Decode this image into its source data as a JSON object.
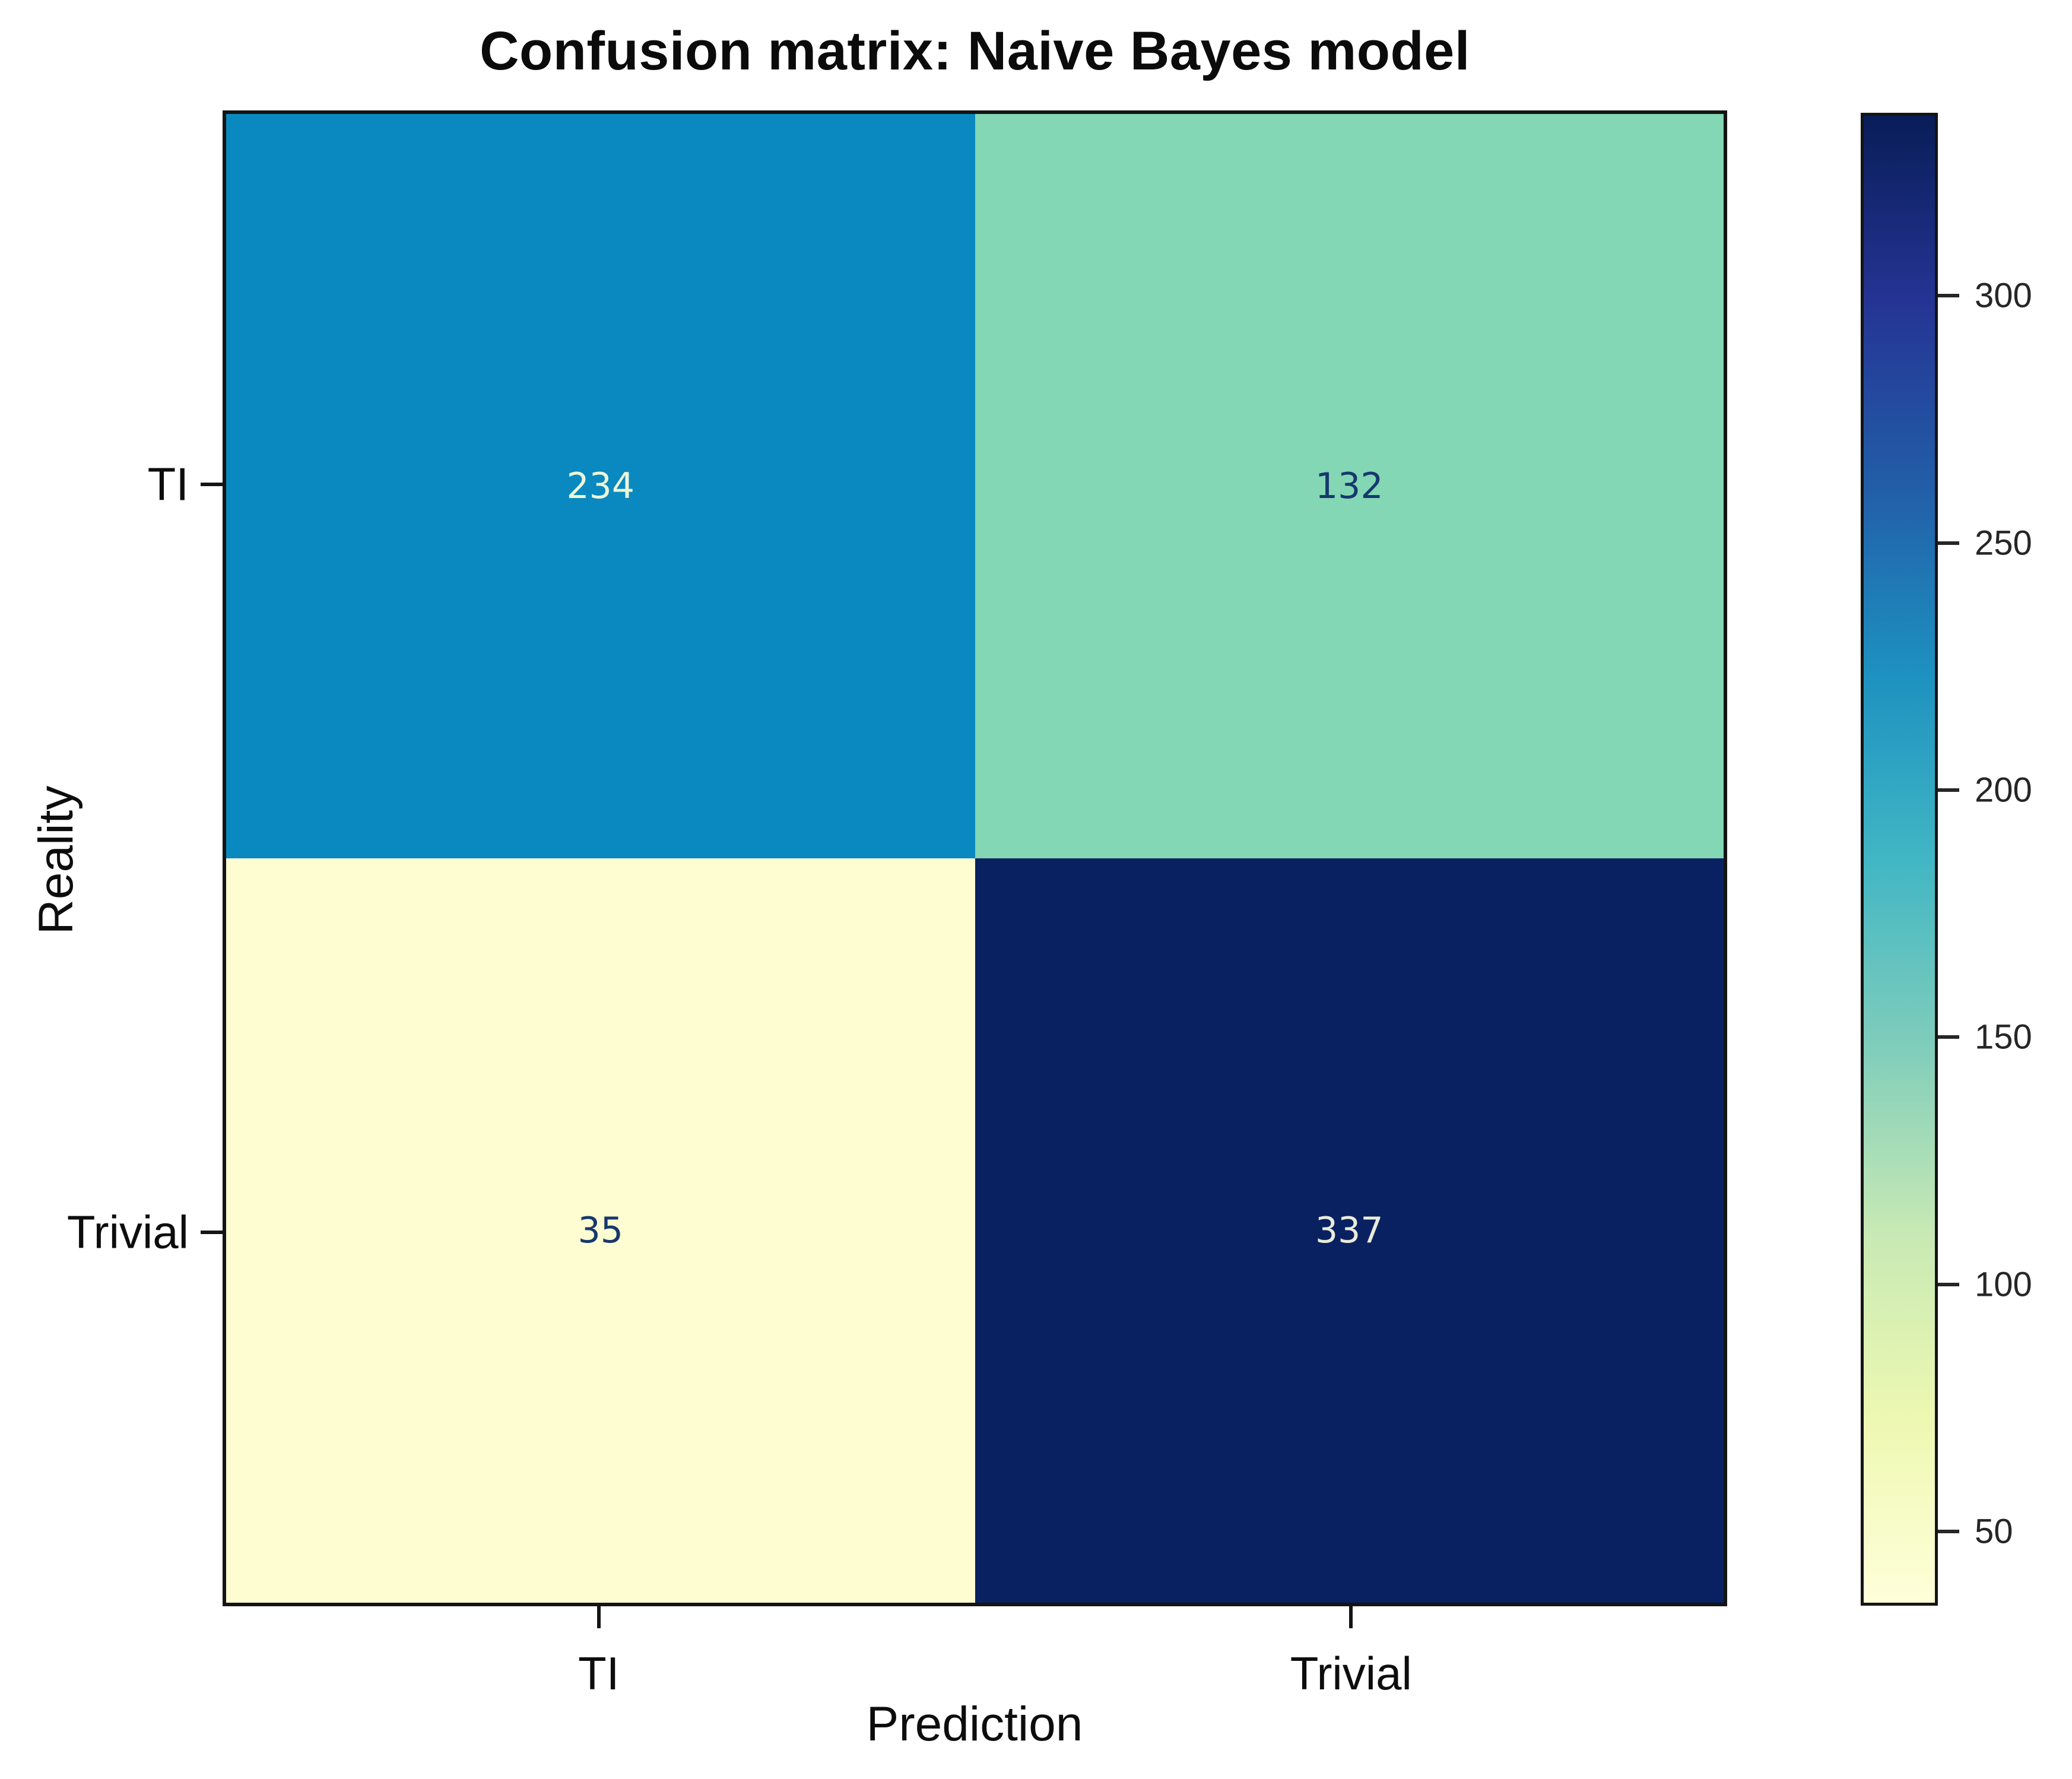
{
  "chart_data": {
    "type": "heatmap",
    "title": "Confusion matrix: Naive Bayes model",
    "xlabel": "Prediction",
    "ylabel": "Reality",
    "x_categories": [
      "TI",
      "Trivial"
    ],
    "y_categories": [
      "TI",
      "Trivial"
    ],
    "matrix": [
      [
        234,
        132
      ],
      [
        35,
        337
      ]
    ],
    "vmin": 35,
    "vmax": 337,
    "colormap": "YlGnBu",
    "colorbar_ticks": [
      50,
      100,
      150,
      200,
      250,
      300
    ],
    "legend_position": "right-colorbar",
    "grid": false
  },
  "style": {
    "background": "#ffffff",
    "cell_colors": [
      [
        "#0989bf",
        "#83d7b4"
      ],
      [
        "#fdfdd1",
        "#0a2161"
      ]
    ],
    "cell_text_colors": [
      [
        "#ecf6d9",
        "#17386d"
      ],
      [
        "#17386d",
        "#e9ecd9"
      ]
    ],
    "colormap_stops": [
      "#ffffd9",
      "#edf8b1",
      "#c7e9b4",
      "#7fcdbb",
      "#41b6c4",
      "#1d91c0",
      "#225ea8",
      "#253494",
      "#081d58"
    ],
    "border_color": "#141414",
    "axis_label_color": "#0d0d0d",
    "colorbar_label_color": "#262626"
  }
}
